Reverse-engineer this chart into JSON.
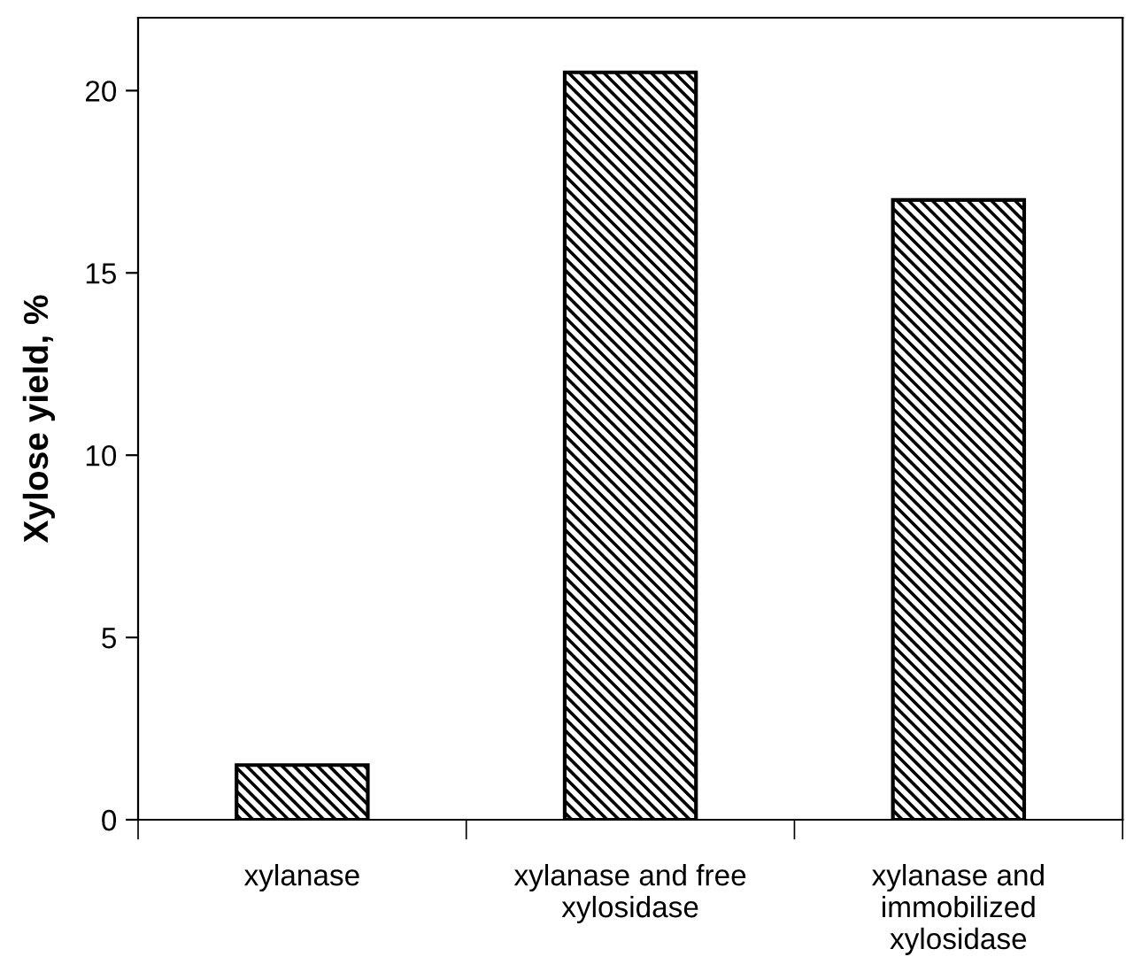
{
  "chart_data": {
    "type": "bar",
    "ylabel": "Xylose yield, %",
    "categories": [
      "xylanase",
      "xylanase and free\nxylosidase",
      "xylanase and\nimmobilized\nxylosidase"
    ],
    "values": [
      1.5,
      20.5,
      17
    ],
    "color": "#000000",
    "ylim": [
      0,
      22
    ],
    "yticks": [
      0,
      5,
      10,
      15,
      20
    ],
    "grid": false,
    "legend": false
  }
}
